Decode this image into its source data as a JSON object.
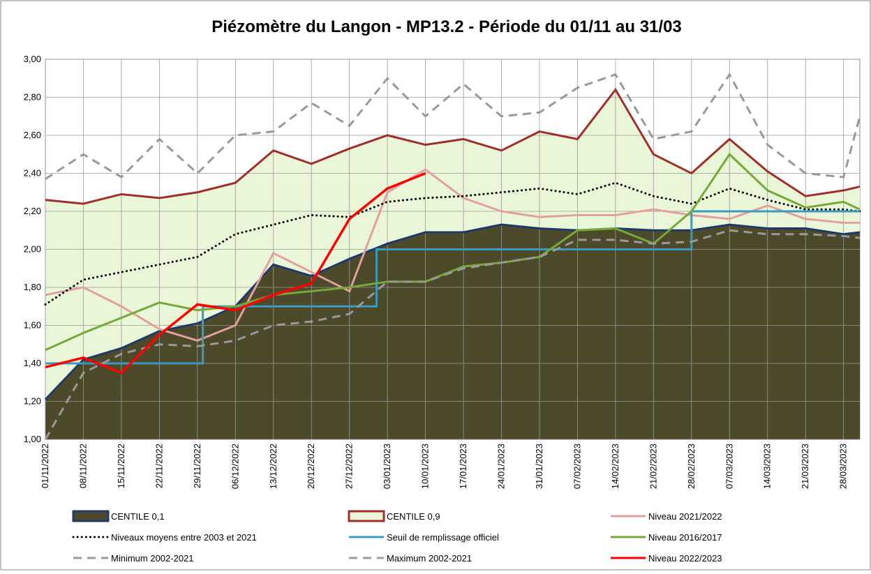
{
  "chart_data": {
    "type": "line",
    "title": "Piézomètre du Langon - MP13.2 - Période du 01/11 au 31/03",
    "x": [
      "01/11/2022",
      "08/11/2022",
      "15/11/2022",
      "22/11/2022",
      "29/11/2022",
      "06/12/2022",
      "13/12/2022",
      "20/12/2022",
      "27/12/2022",
      "03/01/2023",
      "10/01/2023",
      "17/01/2023",
      "24/01/2023",
      "31/01/2023",
      "07/02/2023",
      "14/02/2023",
      "21/02/2023",
      "28/02/2023",
      "07/03/2023",
      "14/03/2023",
      "21/03/2023",
      "28/03/2023",
      "31/03/2023"
    ],
    "xlim": [
      "01/11/2022",
      "31/03/2023"
    ],
    "xticks": [
      "01/11/2022",
      "08/11/2022",
      "15/11/2022",
      "22/11/2022",
      "29/11/2022",
      "06/12/2022",
      "13/12/2022",
      "20/12/2022",
      "27/12/2022",
      "03/01/2023",
      "10/01/2023",
      "17/01/2023",
      "24/01/2023",
      "31/01/2023",
      "07/02/2023",
      "14/02/2023",
      "21/02/2023",
      "28/02/2023",
      "07/03/2023",
      "14/03/2023",
      "21/03/2023",
      "28/03/2023"
    ],
    "ylim": [
      1,
      3
    ],
    "yticks": [
      {
        "value": 1,
        "label": "1,00"
      },
      {
        "value": 1.2,
        "label": "1,20"
      },
      {
        "value": 1.4,
        "label": "1,40"
      },
      {
        "value": 1.6,
        "label": "1,60"
      },
      {
        "value": 1.8,
        "label": "1,80"
      },
      {
        "value": 2,
        "label": "2,00"
      },
      {
        "value": 2.2,
        "label": "2,20"
      },
      {
        "value": 2.4,
        "label": "2,40"
      },
      {
        "value": 2.6,
        "label": "2,60"
      },
      {
        "value": 2.8,
        "label": "2,80"
      },
      {
        "value": 3,
        "label": "3,00"
      }
    ],
    "grid": true,
    "series": [
      {
        "name": "CENTILE 0,9",
        "style": "area",
        "color": "#9e2f2a",
        "fill": "#eaf6d8",
        "values": [
          2.26,
          2.24,
          2.29,
          2.27,
          2.3,
          2.35,
          2.52,
          2.45,
          2.53,
          2.6,
          2.55,
          2.58,
          2.52,
          2.62,
          2.58,
          2.84,
          2.5,
          2.4,
          2.58,
          2.41,
          2.28,
          2.31,
          2.33
        ]
      },
      {
        "name": "CENTILE 0,1",
        "style": "area",
        "color": "#1f3a68",
        "fill": "#4d4a2b",
        "values": [
          1.21,
          1.42,
          1.48,
          1.57,
          1.61,
          1.7,
          1.92,
          1.86,
          1.95,
          2.03,
          2.09,
          2.09,
          2.13,
          2.11,
          2.1,
          2.11,
          2.1,
          2.1,
          2.13,
          2.11,
          2.11,
          2.08,
          2.09
        ]
      },
      {
        "name": "Niveau 2021/2022",
        "color": "#e3a0a0",
        "values": [
          1.76,
          1.8,
          1.7,
          1.58,
          1.52,
          1.6,
          1.98,
          1.88,
          1.78,
          2.3,
          2.42,
          2.27,
          2.2,
          2.17,
          2.18,
          2.18,
          2.21,
          2.18,
          2.16,
          2.23,
          2.16,
          2.14,
          2.14
        ]
      },
      {
        "name": "Niveaux moyens entre 2003 et 2021",
        "color": "#000000",
        "dash": "dotted",
        "values": [
          1.71,
          1.84,
          1.88,
          1.92,
          1.96,
          2.08,
          2.13,
          2.18,
          2.17,
          2.25,
          2.27,
          2.28,
          2.3,
          2.32,
          2.29,
          2.35,
          2.28,
          2.24,
          2.32,
          2.26,
          2.21,
          2.21,
          2.2
        ]
      },
      {
        "name": "Seuil de remplissage officiel",
        "color": "#3a9ac0",
        "step": true,
        "x": [
          "01/11/2022",
          "30/11/2022",
          "01/01/2023",
          "28/02/2023",
          "31/03/2023"
        ],
        "values": [
          1.4,
          1.7,
          2.0,
          2.2,
          2.2
        ]
      },
      {
        "name": "Niveau 2016/2017",
        "color": "#77a83a",
        "values": [
          1.47,
          1.56,
          1.64,
          1.72,
          1.68,
          1.7,
          1.76,
          1.78,
          1.8,
          1.83,
          1.83,
          1.91,
          1.93,
          1.96,
          2.1,
          2.11,
          2.03,
          2.2,
          2.5,
          2.31,
          2.22,
          2.25,
          2.21
        ]
      },
      {
        "name": "Minimum 2002-2021",
        "color": "#999999",
        "dash": "dashed",
        "values": [
          1.0,
          1.35,
          1.45,
          1.5,
          1.49,
          1.52,
          1.6,
          1.62,
          1.66,
          1.83,
          1.83,
          1.9,
          1.93,
          1.96,
          2.05,
          2.05,
          2.03,
          2.04,
          2.1,
          2.08,
          2.08,
          2.07,
          2.06
        ]
      },
      {
        "name": "Maximum 2002-2021",
        "color": "#999999",
        "dash": "dashed",
        "values": [
          2.37,
          2.5,
          2.38,
          2.58,
          2.4,
          2.6,
          2.62,
          2.77,
          2.65,
          2.9,
          2.7,
          2.87,
          2.7,
          2.72,
          2.85,
          2.92,
          2.58,
          2.62,
          2.92,
          2.55,
          2.4,
          2.38,
          2.7
        ]
      },
      {
        "name": "Niveau 2022/2023",
        "color": "#ff0000",
        "values": [
          1.38,
          1.43,
          1.35,
          1.55,
          1.71,
          1.68,
          1.76,
          1.82,
          2.16,
          2.32,
          2.4,
          null,
          null,
          null,
          null,
          null,
          null,
          null,
          null,
          null,
          null,
          null,
          null
        ]
      }
    ]
  }
}
